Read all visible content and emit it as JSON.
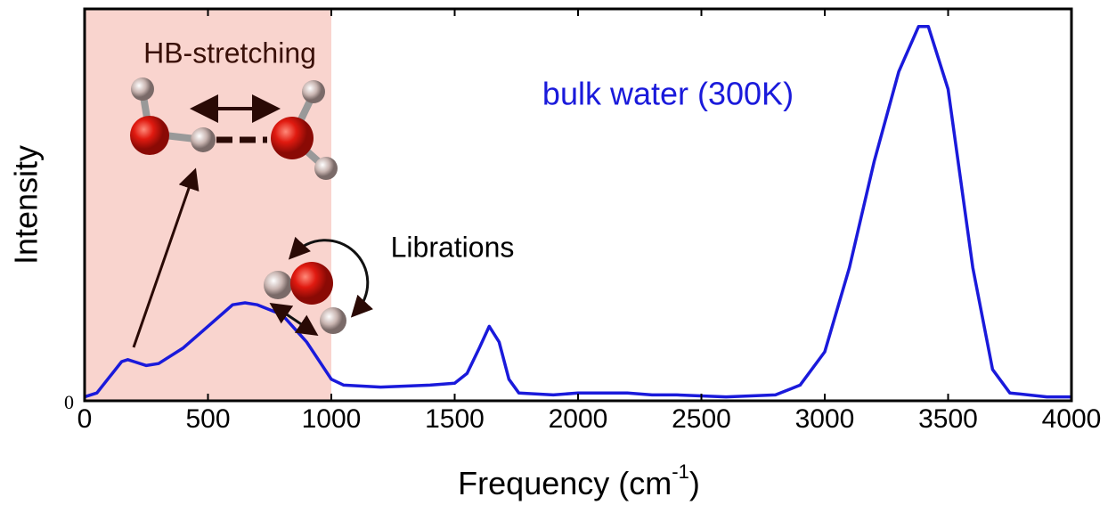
{
  "chart_data": {
    "type": "line",
    "xlabel": [
      "Frequency (cm",
      "-1",
      ")"
    ],
    "ylabel": "Intensity",
    "annotations": [
      "HB-stretching",
      "bulk water (300K)",
      "Librations"
    ],
    "shaded_region": [
      0,
      1000
    ],
    "shaded_color": "#f9d4ce",
    "xlim": [
      0,
      4000
    ],
    "xticks": [
      0,
      500,
      1000,
      1500,
      2000,
      2500,
      3000,
      3500,
      4000
    ],
    "ylim": [
      0,
      1
    ],
    "yticks": [
      0
    ],
    "x": [
      0,
      50,
      100,
      150,
      175,
      200,
      250,
      300,
      400,
      500,
      600,
      650,
      700,
      800,
      900,
      1000,
      1050,
      1200,
      1400,
      1500,
      1550,
      1600,
      1640,
      1680,
      1720,
      1760,
      1900,
      2000,
      2200,
      2300,
      2400,
      2600,
      2800,
      2900,
      3000,
      3100,
      3200,
      3300,
      3380,
      3420,
      3500,
      3600,
      3680,
      3750,
      3900,
      4000
    ],
    "series": [
      {
        "color": "#1a1adb",
        "values": [
          0.01,
          0.02,
          0.06,
          0.1,
          0.105,
          0.1,
          0.09,
          0.095,
          0.135,
          0.19,
          0.245,
          0.25,
          0.245,
          0.22,
          0.15,
          0.055,
          0.04,
          0.035,
          0.04,
          0.045,
          0.07,
          0.135,
          0.19,
          0.15,
          0.055,
          0.02,
          0.015,
          0.02,
          0.02,
          0.015,
          0.015,
          0.01,
          0.015,
          0.04,
          0.125,
          0.34,
          0.61,
          0.84,
          0.955,
          0.955,
          0.795,
          0.34,
          0.08,
          0.02,
          0.01,
          0.01
        ]
      }
    ]
  }
}
